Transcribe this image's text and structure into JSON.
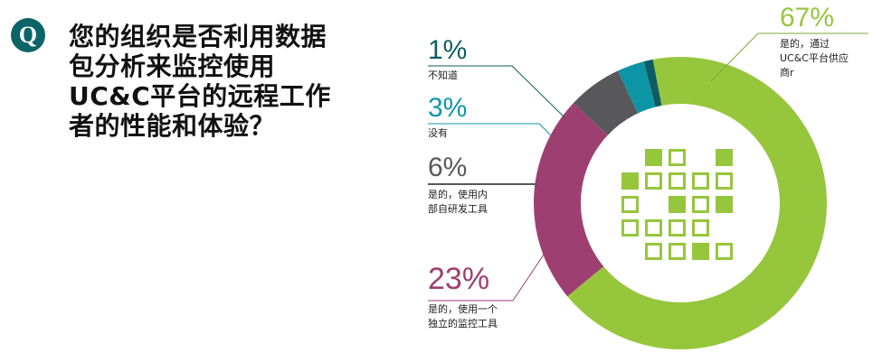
{
  "question": {
    "badge": "Q",
    "lines": [
      "您的组织是否利用数据",
      "包分析来监控使用",
      "UC&C平台的远程工作",
      "者的性能和体验？"
    ]
  },
  "chart_data": {
    "type": "pie",
    "variant": "donut",
    "title": "您的组织是否利用数据包分析来监控使用UC&C平台的远程工作者的性能和体验？",
    "slices": [
      {
        "label": "是的，通过UC&C平台供应商r",
        "value": 67,
        "color": "#96c63c"
      },
      {
        "label": "是的，使用一个独立的监控工具",
        "value": 23,
        "color": "#9e3f72"
      },
      {
        "label": "是的，使用内部自研发工具",
        "value": 6,
        "color": "#58585a"
      },
      {
        "label": "没有",
        "value": 3,
        "color": "#0e95a5"
      },
      {
        "label": "不知道",
        "value": 1,
        "color": "#0d5c63"
      }
    ],
    "legend": "leader-line labels"
  },
  "labels": {
    "s67": {
      "pct": "67%",
      "lines": [
        "是的，通过",
        "UC&C平台供应",
        "商r"
      ]
    },
    "s1": {
      "pct": "1%",
      "lines": [
        "不知道"
      ]
    },
    "s3": {
      "pct": "3%",
      "lines": [
        "没有"
      ]
    },
    "s6": {
      "pct": "6%",
      "lines": [
        "是的，使用内",
        "部自研发工具"
      ]
    },
    "s23": {
      "pct": "23%",
      "lines": [
        "是的，使用一个",
        "独立的监控工具"
      ]
    }
  },
  "center_icon": {
    "name": "packet-grid-icon",
    "grid": [
      [
        0,
        2,
        1,
        0,
        2
      ],
      [
        2,
        1,
        1,
        1,
        1
      ],
      [
        1,
        0,
        2,
        1,
        2
      ],
      [
        1,
        1,
        1,
        1,
        0
      ],
      [
        0,
        1,
        1,
        2,
        1
      ]
    ]
  }
}
